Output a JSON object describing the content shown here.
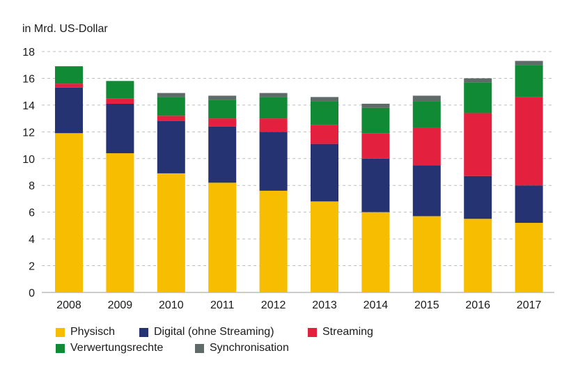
{
  "chart_data": {
    "type": "bar",
    "stacked": true,
    "unit_label": "in Mrd. US-Dollar",
    "categories": [
      "2008",
      "2009",
      "2010",
      "2011",
      "2012",
      "2013",
      "2014",
      "2015",
      "2016",
      "2017"
    ],
    "series": [
      {
        "name": "Physisch",
        "color": "#f7bd00",
        "values": [
          11.9,
          10.4,
          8.9,
          8.2,
          7.6,
          6.8,
          6.0,
          5.7,
          5.5,
          5.2
        ]
      },
      {
        "name": "Digital (ohne Streaming)",
        "color": "#253373",
        "values": [
          3.4,
          3.7,
          3.9,
          4.2,
          4.4,
          4.3,
          4.0,
          3.8,
          3.2,
          2.8
        ]
      },
      {
        "name": "Streaming",
        "color": "#e4203f",
        "values": [
          0.3,
          0.4,
          0.4,
          0.6,
          1.0,
          1.4,
          1.9,
          2.8,
          4.7,
          6.6
        ]
      },
      {
        "name": "Verwertungsrechte",
        "color": "#108a35",
        "values": [
          1.3,
          1.3,
          1.4,
          1.4,
          1.6,
          1.8,
          1.9,
          2.0,
          2.3,
          2.4
        ]
      },
      {
        "name": "Synchronisation",
        "color": "#5f6b69",
        "values": [
          0.0,
          0.0,
          0.3,
          0.3,
          0.3,
          0.3,
          0.3,
          0.4,
          0.3,
          0.3
        ]
      }
    ],
    "ylim": [
      0,
      18
    ],
    "yticks": [
      0,
      2,
      4,
      6,
      8,
      10,
      12,
      14,
      16,
      18
    ],
    "grid": "horizontal-dashed",
    "legend_position": "bottom"
  }
}
